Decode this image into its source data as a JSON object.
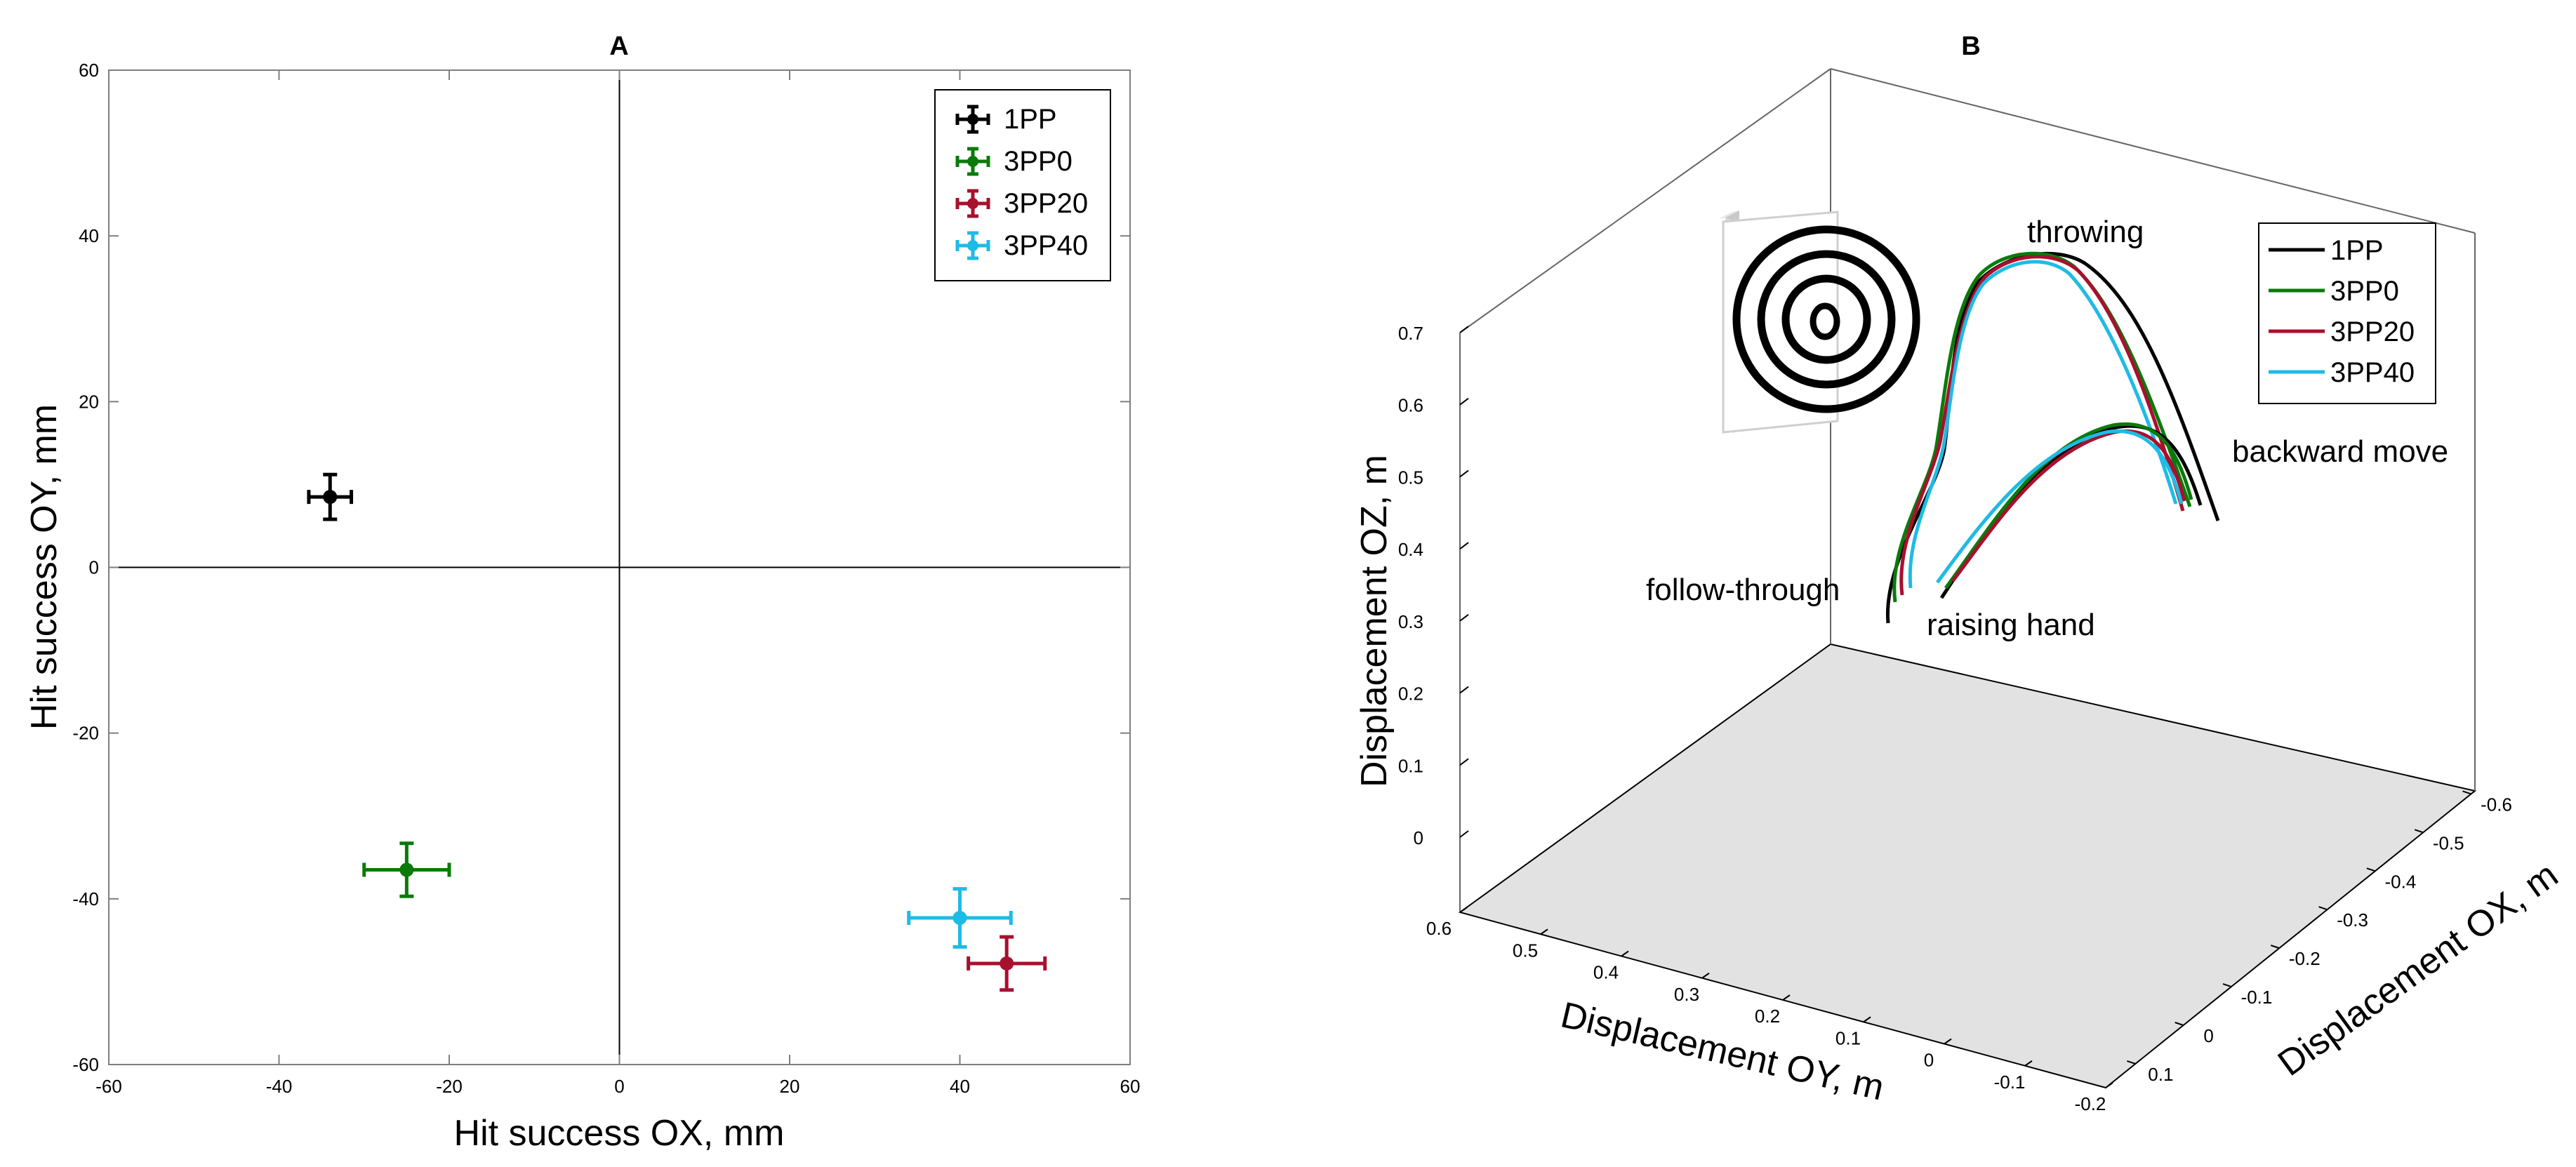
{
  "colors": {
    "1PP": "#000000",
    "3PP0": "#0a7a0a",
    "3PP20": "#a8102e",
    "3PP40": "#1ebbe4",
    "floor": "#e2e2e2",
    "axis": "#000000",
    "box": "#7f7f7f"
  },
  "chart_data": [
    {
      "panel": "A",
      "type": "scatter",
      "title": "A",
      "xlabel": "Hit success OX, mm",
      "ylabel": "Hit success OY, mm",
      "xlim": [
        -60,
        60
      ],
      "ylim": [
        -60,
        60
      ],
      "xticks": [
        -60,
        -40,
        -20,
        0,
        20,
        40,
        60
      ],
      "yticks": [
        -60,
        -40,
        -20,
        0,
        20,
        40,
        60
      ],
      "legend_position": "top-right",
      "series": [
        {
          "name": "1PP",
          "color_key": "1PP",
          "x": -34,
          "y": 8.5,
          "xerr": 2.5,
          "yerr": 2.7
        },
        {
          "name": "3PP0",
          "color_key": "3PP0",
          "x": -25,
          "y": -36.5,
          "xerr": 5,
          "yerr": 3.2
        },
        {
          "name": "3PP20",
          "color_key": "3PP20",
          "x": 45.5,
          "y": -47.8,
          "xerr": 4.5,
          "yerr": 3.2
        },
        {
          "name": "3PP40",
          "color_key": "3PP40",
          "x": 40,
          "y": -42.3,
          "xerr": 6,
          "yerr": 3.5
        }
      ]
    },
    {
      "panel": "B",
      "type": "line",
      "projection": "3d",
      "title": "B",
      "xlabel": "Displacement OY, m",
      "ylabel": "Displacement OX, m",
      "zlabel": "Displacement OZ, m",
      "oy_ticks": [
        "0.6",
        "0.5",
        "0.4",
        "0.3",
        "0.2",
        "0.1",
        "0",
        "-0.1",
        "-0.2"
      ],
      "ox_ticks": [
        "-0.6",
        "-0.5",
        "-0.4",
        "-0.3",
        "-0.2",
        "-0.1",
        "0",
        "0.1"
      ],
      "oz_ticks": [
        "0",
        "0.1",
        "0.2",
        "0.3",
        "0.4",
        "0.5",
        "0.6",
        "0.7"
      ],
      "zlim": [
        0,
        0.7
      ],
      "annotations": [
        "throwing",
        "backward move",
        "follow-through",
        "raising hand"
      ],
      "legend_position": "top-right",
      "series": [
        {
          "name": "1PP",
          "color_key": "1PP"
        },
        {
          "name": "3PP0",
          "color_key": "3PP0"
        },
        {
          "name": "3PP20",
          "color_key": "3PP20"
        },
        {
          "name": "3PP40",
          "color_key": "3PP40"
        }
      ]
    }
  ]
}
